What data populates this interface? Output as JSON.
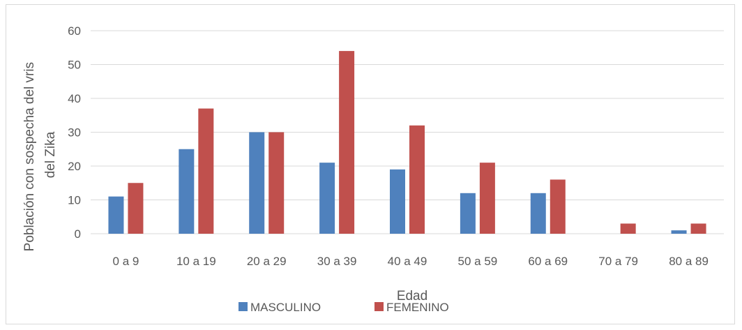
{
  "chart_data": {
    "type": "bar",
    "title": "",
    "xlabel": "Edad",
    "ylabel_lines": [
      "Población con sospecha del vris",
      "del Zika"
    ],
    "ylim": [
      0,
      60
    ],
    "yticks": [
      "0",
      "10",
      "20",
      "30",
      "40",
      "50",
      "60"
    ],
    "grid": true,
    "legend_position": "bottom",
    "categories": [
      "0 a 9",
      "10 a 19",
      "20 a 29",
      "30 a 39",
      "40 a 49",
      "50 a 59",
      "60 a 69",
      "70 a 79",
      "80 a 89"
    ],
    "series": [
      {
        "name": "MASCULINO",
        "color": "#4f81bd",
        "values": [
          11,
          25,
          30,
          21,
          19,
          12,
          12,
          0,
          1
        ]
      },
      {
        "name": "FEMENINO",
        "color": "#c0504d",
        "values": [
          15,
          37,
          30,
          54,
          32,
          21,
          16,
          3,
          3
        ]
      }
    ]
  }
}
